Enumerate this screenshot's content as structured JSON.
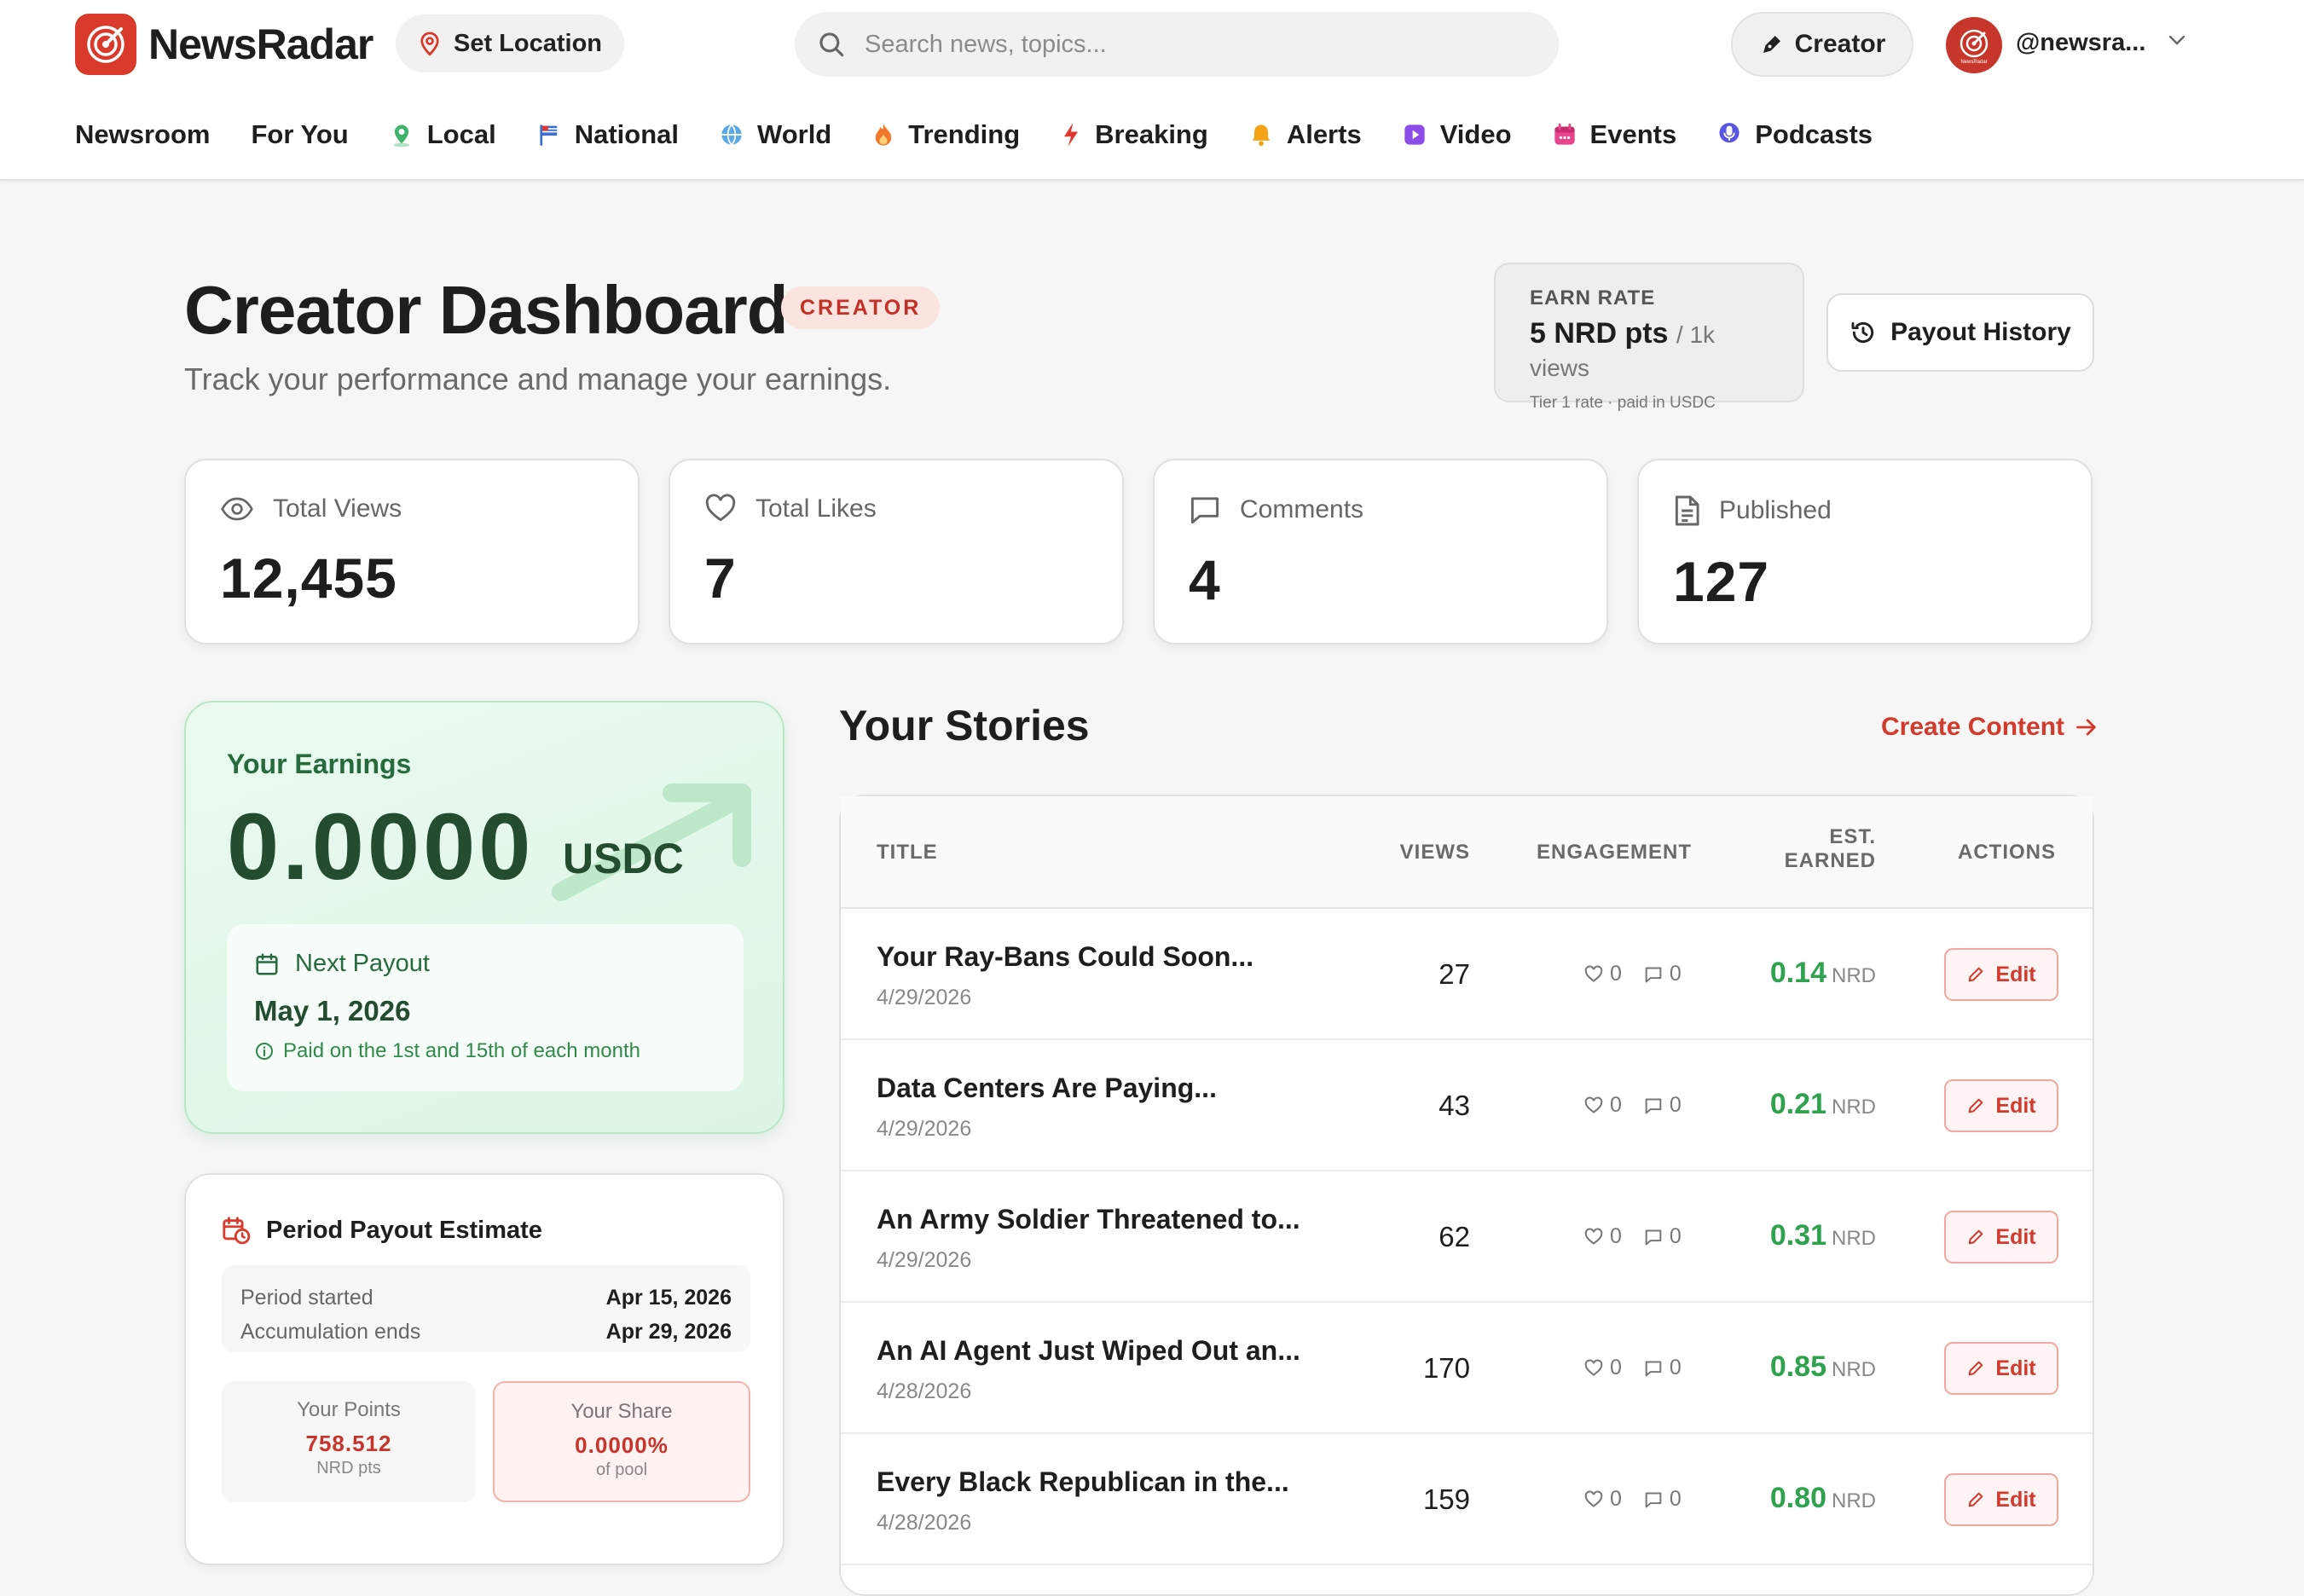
{
  "brand": {
    "name": "NewsRadar",
    "color": "#d93a2b",
    "logo_subtext": "NewsRadar"
  },
  "header": {
    "set_location": "Set Location",
    "search_placeholder": "Search news, topics...",
    "creator_button": "Creator",
    "username": "@newsra...",
    "avatar_text": "NewsRadar"
  },
  "nav": [
    {
      "label": "Newsroom",
      "icon": "none"
    },
    {
      "label": "For You",
      "icon": "none"
    },
    {
      "label": "Local",
      "icon": "map-pin-icon",
      "color": "#3fb36b"
    },
    {
      "label": "National",
      "icon": "flag-icon",
      "color": "#3b6fd6"
    },
    {
      "label": "World",
      "icon": "globe-icon",
      "color": "#3b8fd6"
    },
    {
      "label": "Trending",
      "icon": "flame-icon",
      "color": "#f0792b"
    },
    {
      "label": "Breaking",
      "icon": "lightning-icon",
      "color": "#e0382e"
    },
    {
      "label": "Alerts",
      "icon": "bell-icon",
      "color": "#f5a316"
    },
    {
      "label": "Video",
      "icon": "play-icon",
      "color": "#8b4ce8"
    },
    {
      "label": "Events",
      "icon": "calendar-icon",
      "color": "#e8458a"
    },
    {
      "label": "Podcasts",
      "icon": "mic-icon",
      "color": "#5a55e0"
    }
  ],
  "page": {
    "title": "Creator Dashboard",
    "badge": "CREATOR",
    "subtitle": "Track your performance and manage your earnings."
  },
  "earn_rate": {
    "label": "EARN RATE",
    "value": "5 NRD pts",
    "unit": "/ 1k views",
    "note": "Tier 1 rate · paid in USDC"
  },
  "payout_history": "Payout History",
  "stats": [
    {
      "label": "Total Views",
      "value": "12,455",
      "icon": "eye-icon"
    },
    {
      "label": "Total Likes",
      "value": "7",
      "icon": "heart-icon"
    },
    {
      "label": "Comments",
      "value": "4",
      "icon": "comment-icon"
    },
    {
      "label": "Published",
      "value": "127",
      "icon": "document-icon"
    }
  ],
  "earnings": {
    "label": "Your Earnings",
    "value": "0.0000",
    "unit": "USDC",
    "next_payout_label": "Next Payout",
    "next_payout_date": "May 1, 2026",
    "next_payout_note": "Paid on the 1st and 15th of each month"
  },
  "period": {
    "title": "Period Payout Estimate",
    "rows": [
      {
        "label": "Period started",
        "value": "Apr 15, 2026"
      },
      {
        "label": "Accumulation ends",
        "value": "Apr 29, 2026"
      }
    ],
    "points_label": "Your Points",
    "points_value": "758.512",
    "points_unit": "NRD pts",
    "share_label": "Your Share",
    "share_value": "0.0000%",
    "share_unit": "of pool"
  },
  "stories": {
    "title": "Your Stories",
    "create_label": "Create Content",
    "columns": {
      "title": "TITLE",
      "views": "VIEWS",
      "engagement": "ENGAGEMENT",
      "earned_1": "EST.",
      "earned_2": "EARNED",
      "actions": "ACTIONS"
    },
    "edit_label": "Edit",
    "earn_unit": "NRD",
    "rows": [
      {
        "title": "Your Ray-Bans Could Soon...",
        "date": "4/29/2026",
        "views": "27",
        "likes": "0",
        "comments": "0",
        "earned": "0.14"
      },
      {
        "title": "Data Centers Are Paying...",
        "date": "4/29/2026",
        "views": "43",
        "likes": "0",
        "comments": "0",
        "earned": "0.21"
      },
      {
        "title": "An Army Soldier Threatened to...",
        "date": "4/29/2026",
        "views": "62",
        "likes": "0",
        "comments": "0",
        "earned": "0.31"
      },
      {
        "title": "An AI Agent Just Wiped Out an...",
        "date": "4/28/2026",
        "views": "170",
        "likes": "0",
        "comments": "0",
        "earned": "0.85"
      },
      {
        "title": "Every Black Republican in the...",
        "date": "4/28/2026",
        "views": "159",
        "likes": "0",
        "comments": "0",
        "earned": "0.80"
      }
    ]
  }
}
